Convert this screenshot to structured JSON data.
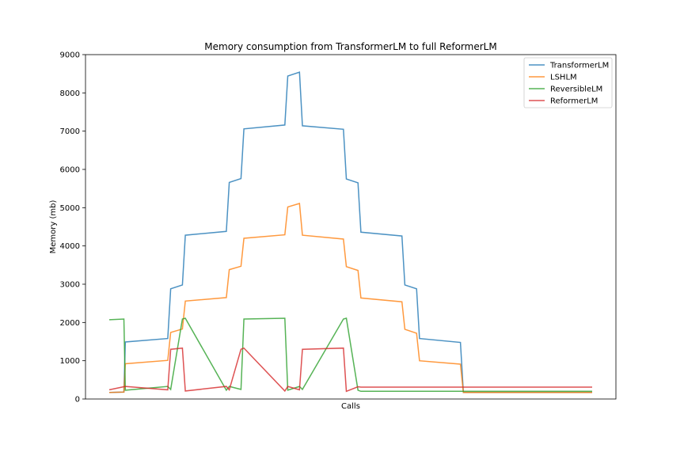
{
  "chart_data": {
    "type": "line",
    "title": "Memory consumption from TransformerLM to full ReformerLM",
    "xlabel": "Calls",
    "ylabel": "Memory (mb)",
    "ylim": [
      0,
      9000
    ],
    "yticks": [
      0,
      1000,
      2000,
      3000,
      4000,
      5000,
      6000,
      7000,
      8000,
      9000
    ],
    "xticks_visible": false,
    "grid": false,
    "legend_position": "top-right",
    "x": [
      0,
      5,
      5.5,
      20,
      21,
      25,
      26,
      40,
      41,
      45,
      46,
      60,
      61,
      65,
      66,
      80,
      81,
      85,
      86,
      100,
      101,
      105,
      106,
      120,
      121,
      125,
      126,
      140,
      141,
      145,
      146,
      160,
      161,
      165
    ],
    "series": [
      {
        "name": "TransformerLM",
        "color": "#1f77b4",
        "values": [
          170,
          180,
          1490,
          1580,
          2880,
          2980,
          4280,
          4380,
          5660,
          5760,
          7060,
          7160,
          8440,
          8540,
          7140,
          7050,
          5750,
          5650,
          4360,
          4260,
          2980,
          2880,
          1580,
          1480,
          170,
          170,
          170,
          170,
          170,
          170,
          170,
          170,
          170,
          170
        ]
      },
      {
        "name": "LSHLM",
        "color": "#ff7f0e",
        "values": [
          170,
          180,
          920,
          1010,
          1740,
          1830,
          2560,
          2650,
          3380,
          3470,
          4200,
          4290,
          5020,
          5110,
          4280,
          4180,
          3460,
          3360,
          2640,
          2540,
          1820,
          1720,
          1000,
          910,
          170,
          170,
          170,
          170,
          170,
          170,
          170,
          170,
          170,
          170
        ]
      },
      {
        "name": "ReversibleLM",
        "color": "#2ca02c",
        "values": [
          2070,
          2090,
          230,
          330,
          250,
          2090,
          2110,
          230,
          330,
          250,
          2090,
          2110,
          230,
          330,
          250,
          2090,
          2110,
          230,
          200,
          200,
          200,
          200,
          200,
          200,
          200,
          200,
          200,
          200,
          200,
          200,
          200,
          200,
          200,
          200
        ]
      },
      {
        "name": "ReformerLM",
        "color": "#d62728",
        "values": [
          240,
          320,
          330,
          240,
          1300,
          1330,
          210,
          330,
          240,
          1300,
          1330,
          210,
          330,
          240,
          1300,
          1330,
          200,
          320,
          310,
          310,
          310,
          310,
          310,
          310,
          310,
          310,
          310,
          310,
          310,
          310,
          310,
          310,
          310,
          310
        ]
      }
    ]
  }
}
